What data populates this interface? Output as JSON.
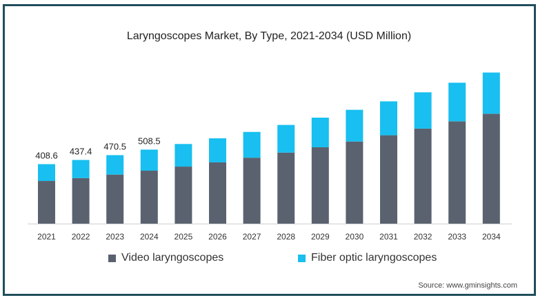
{
  "chart_data": {
    "type": "bar",
    "stacked": true,
    "title": "Laryngoscopes Market, By Type, 2021-2034 (USD Million)",
    "categories": [
      "2021",
      "2022",
      "2023",
      "2024",
      "2025",
      "2026",
      "2027",
      "2028",
      "2029",
      "2030",
      "2031",
      "2032",
      "2033",
      "2034"
    ],
    "series": [
      {
        "name": "Video laryngoscopes",
        "color": "#5a6270",
        "values": [
          293,
          313,
          337,
          364,
          392,
          421,
          453,
          488,
          525,
          564,
          607,
          653,
          703,
          755
        ]
      },
      {
        "name": "Fiber optic laryngoscopes",
        "color": "#18bff0",
        "values": [
          115.6,
          124.4,
          133.5,
          144.5,
          155,
          165,
          177,
          190,
          203,
          218,
          233,
          249,
          265,
          283
        ]
      }
    ],
    "totals_labels": [
      "408.6",
      "437.4",
      "470.5",
      "508.5"
    ],
    "ylim": [
      0,
      1040
    ],
    "grid": false,
    "legend_position": "bottom"
  },
  "source": "Source: www.gminsights.com"
}
